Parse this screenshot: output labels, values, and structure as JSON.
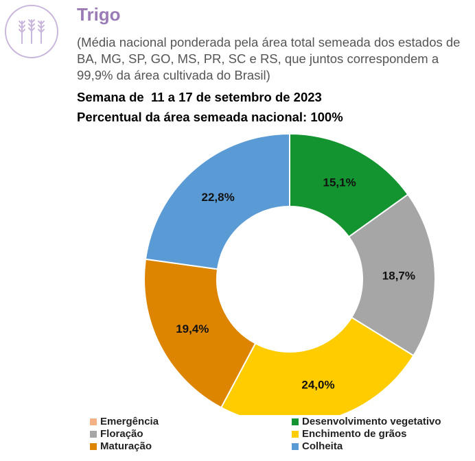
{
  "header": {
    "title": "Trigo",
    "subtitle": "(Média nacional ponderada pela área total semeada dos estados de BA, MG, SP, GO, MS, PR, SC e RS, que juntos correspondem a 99,9% da área cultivada do Brasil)",
    "week": "Semana de  11 a 17 de setembro de 2023",
    "sown_area": "Percentual da área semeada nacional: 100%"
  },
  "logo": {
    "icon": "wheat-icon",
    "color": "#b9a3cf"
  },
  "chart_data": {
    "type": "pie",
    "variant": "donut",
    "categories": [
      "Emergência",
      "Desenvolvimento vegetativo",
      "Floração",
      "Enchimento de grãos",
      "Maturação",
      "Colheita"
    ],
    "values": [
      0.0,
      15.1,
      18.7,
      24.0,
      19.4,
      22.8
    ],
    "labels": [
      "",
      "15,1%",
      "18,7%",
      "24,0%",
      "19,4%",
      "22,8%"
    ],
    "colors": [
      "#f4b183",
      "#149430",
      "#a6a6a6",
      "#ffcc00",
      "#dd8500",
      "#5b9bd5"
    ],
    "legend_position": "bottom"
  }
}
